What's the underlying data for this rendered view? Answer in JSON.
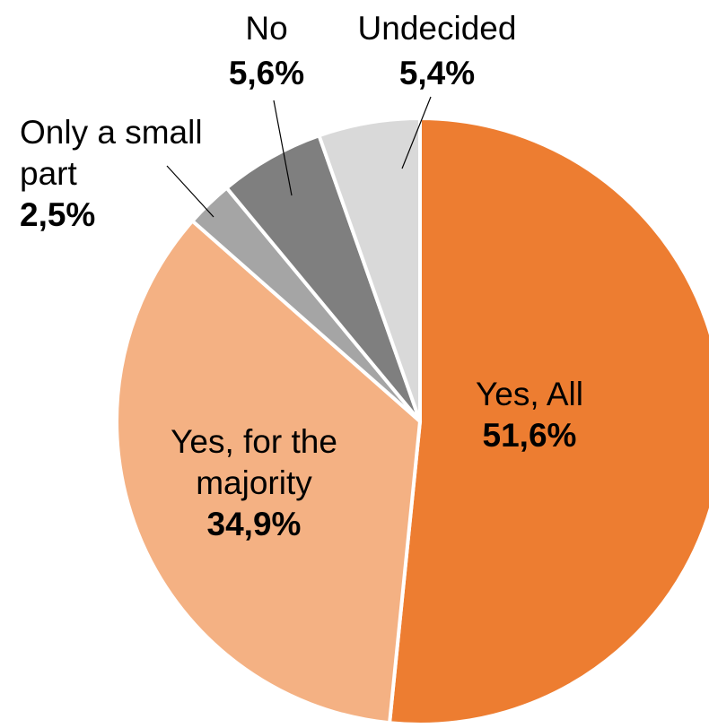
{
  "chart_data": {
    "type": "pie",
    "title": "",
    "slices": [
      {
        "key": "yes_all",
        "lines": [
          "Yes, All"
        ],
        "value": 51.6,
        "value_label": "51,6%",
        "color": "#ED7D31"
      },
      {
        "key": "yes_majority",
        "lines": [
          "Yes, for the",
          "majority"
        ],
        "value": 34.9,
        "value_label": "34,9%",
        "color": "#F4B183"
      },
      {
        "key": "small_part",
        "lines": [
          "Only a small",
          "part"
        ],
        "value": 2.5,
        "value_label": "2,5%",
        "color": "#A5A5A5"
      },
      {
        "key": "no",
        "lines": [
          "No"
        ],
        "value": 5.6,
        "value_label": "5,6%",
        "color": "#7F7F7F"
      },
      {
        "key": "undecided",
        "lines": [
          "Undecided"
        ],
        "value": 5.4,
        "value_label": "5,4%",
        "color": "#D9D9D9"
      }
    ],
    "start_angle": "12 o'clock",
    "direction": "clockwise",
    "legend": "none"
  }
}
